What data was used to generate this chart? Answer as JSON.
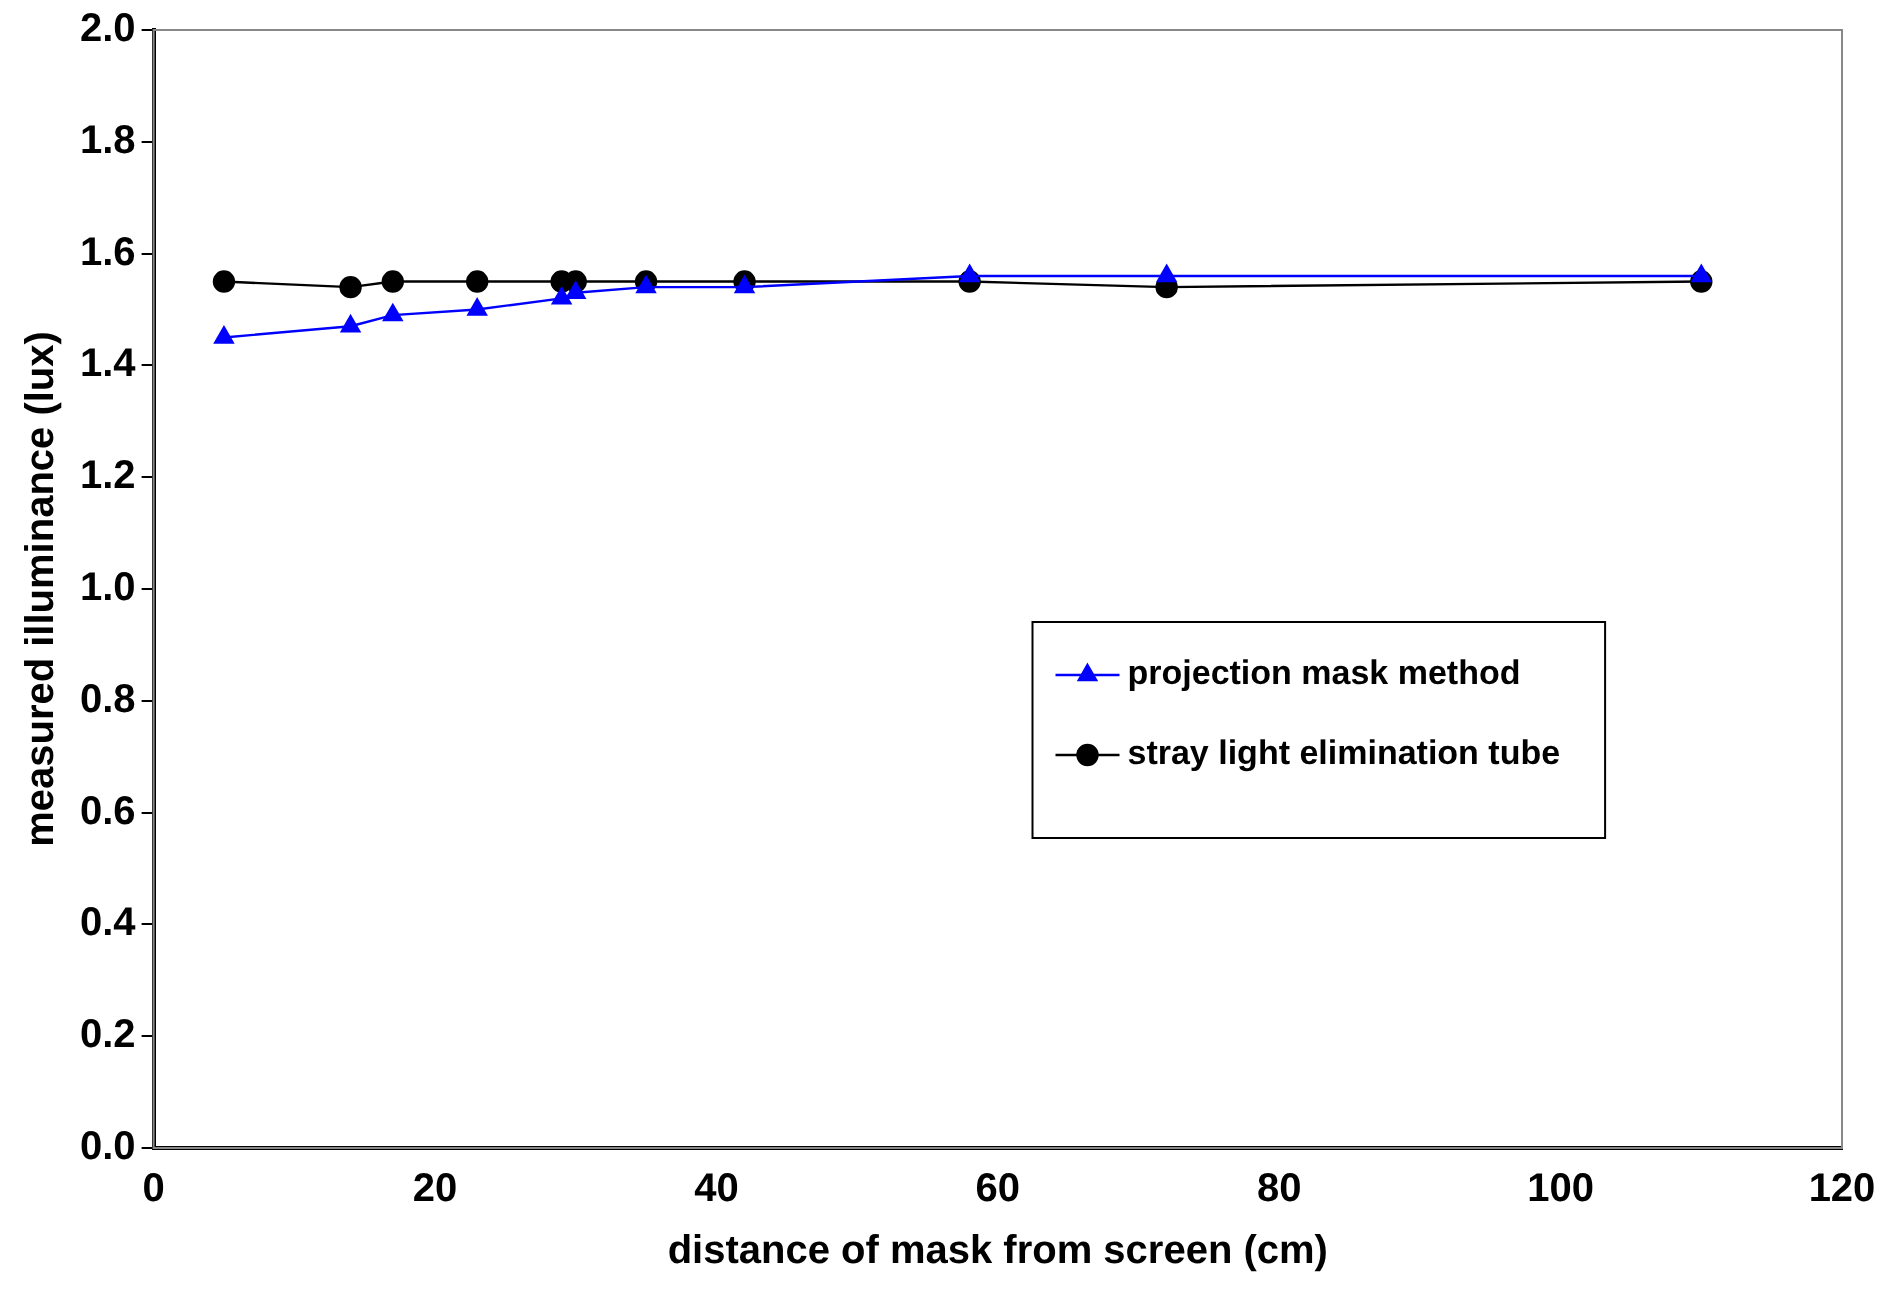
{
  "chart_data": {
    "type": "line",
    "xlabel": "distance of mask from screen (cm)",
    "ylabel": "measured illuminance (lux)",
    "x": [
      5,
      14,
      17,
      23,
      29,
      30,
      35,
      42,
      58,
      72,
      110
    ],
    "series": [
      {
        "name": "projection mask method",
        "color": "#0000ff",
        "marker": "triangle",
        "values": [
          1.45,
          1.47,
          1.49,
          1.5,
          1.52,
          1.53,
          1.54,
          1.54,
          1.56,
          1.56,
          1.56
        ]
      },
      {
        "name": "stray light elimination tube",
        "color": "#000000",
        "marker": "circle",
        "values": [
          1.55,
          1.54,
          1.55,
          1.55,
          1.55,
          1.55,
          1.55,
          1.55,
          1.55,
          1.54,
          1.55
        ]
      }
    ],
    "xlim": [
      0,
      120
    ],
    "xticks": [
      0,
      20,
      40,
      60,
      80,
      100,
      120
    ],
    "ylim": [
      0,
      2
    ],
    "yticks": [
      {
        "value": 0,
        "label": "0.0"
      },
      0.2,
      0.4,
      0.6,
      0.8,
      {
        "value": 1,
        "label": "1.0"
      },
      1.2,
      1.4,
      1.6,
      1.8,
      {
        "value": 2,
        "label": "2.0"
      }
    ],
    "grid": false,
    "legend": "center"
  }
}
